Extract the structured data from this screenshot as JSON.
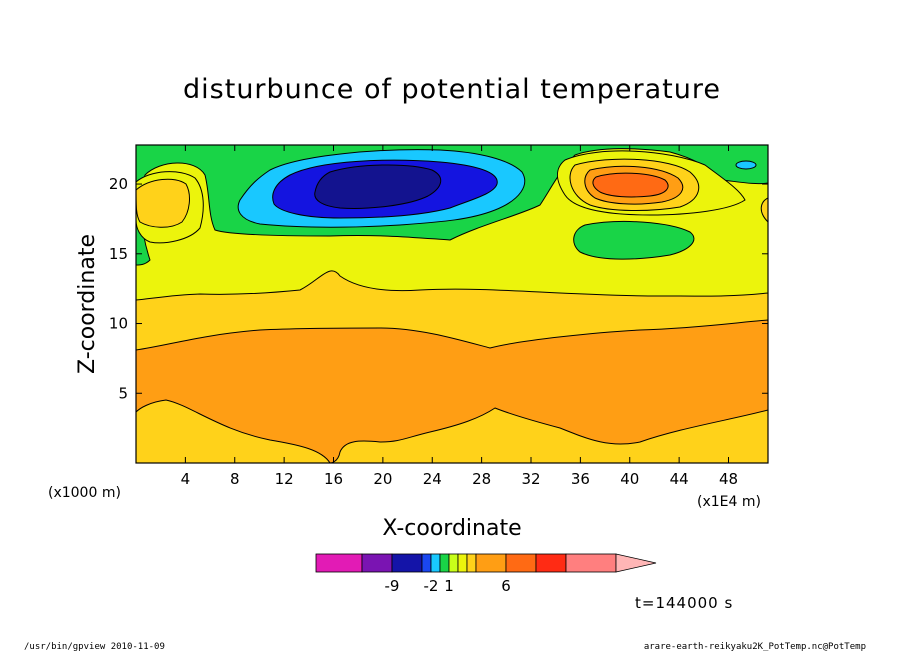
{
  "chart_data": {
    "type": "contour",
    "title": "disturbunce of potential temperature",
    "xlabel": "X-coordinate",
    "ylabel": "Z-coordinate",
    "x_unit": "(x1E4 m)",
    "y_unit": "(x1000 m)",
    "xlim": [
      0,
      51.2
    ],
    "ylim": [
      0,
      22.8
    ],
    "x_ticks": [
      4,
      8,
      12,
      16,
      20,
      24,
      28,
      32,
      36,
      40,
      44,
      48
    ],
    "y_ticks": [
      5,
      10,
      15,
      20
    ],
    "time_label": "t=144000 s",
    "colorbar": {
      "colors": [
        "#e21bb5",
        "#7a14b2",
        "#1414a8",
        "#1a47f0",
        "#19c8ff",
        "#19d447",
        "#c8ff19",
        "#ecf40c",
        "#ffd21a",
        "#ff9e14",
        "#ff6a14",
        "#ff2b14",
        "#ff7f7f",
        "#ffb6b6"
      ],
      "labels": [
        {
          "text": "-9",
          "value": -9
        },
        {
          "text": "-2",
          "value": -2
        },
        {
          "text": "1",
          "value": 1
        },
        {
          "text": "6",
          "value": 6
        }
      ]
    },
    "features": [
      {
        "name": "negative-core",
        "color": "#13138f",
        "center": [
          20.5,
          19.8
        ],
        "level": "min"
      },
      {
        "name": "positive-core",
        "color": "#ff6a14",
        "center": [
          39.6,
          20.1
        ],
        "level": "max"
      },
      {
        "name": "warm-band",
        "color": "#ff9e14",
        "z_range": [
          2,
          9.5
        ]
      }
    ]
  },
  "footer": {
    "left": "/usr/bin/gpview   2010-11-09",
    "right": "arare-earth-reikyaku2K_PotTemp.nc@PotTemp"
  }
}
